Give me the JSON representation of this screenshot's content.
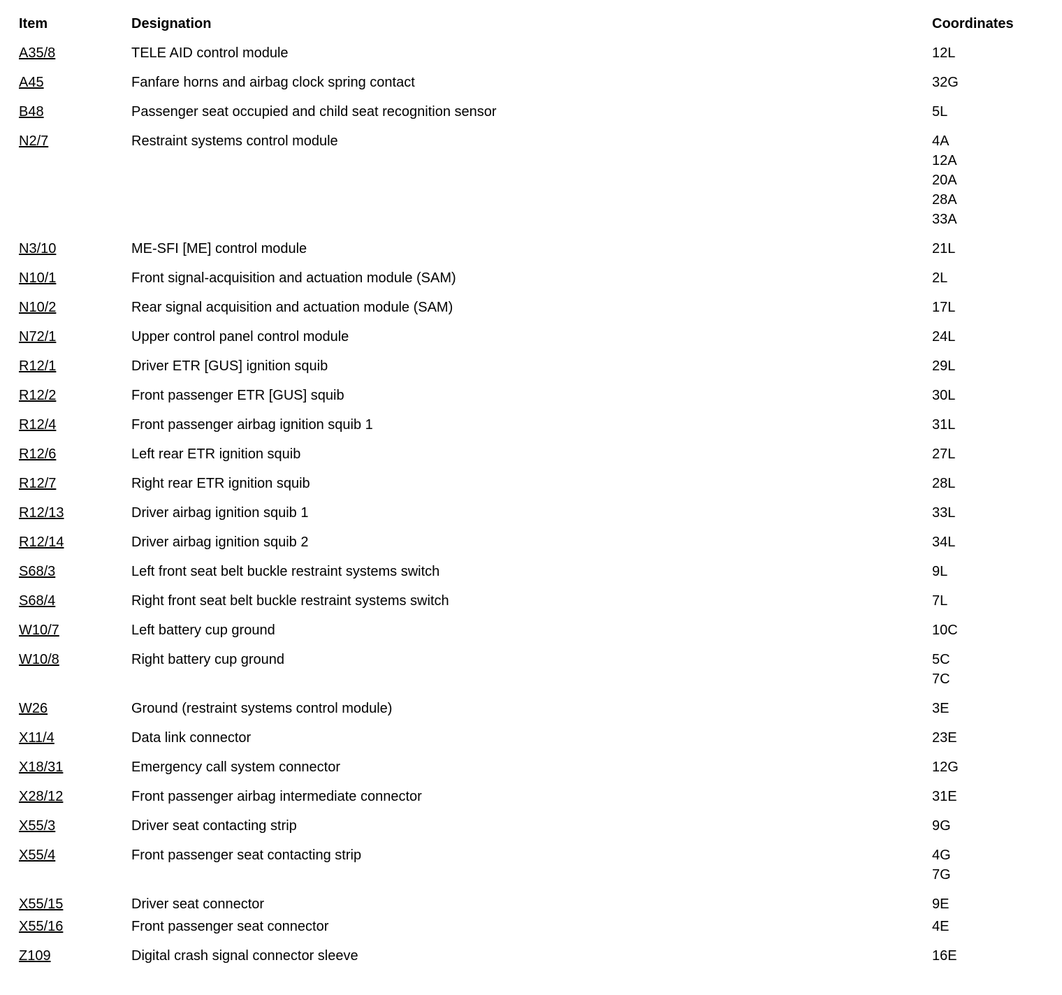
{
  "page": {
    "headers": {
      "item": "Item",
      "designation": "Designation",
      "coordinates": "Coordinates"
    },
    "rows": [
      {
        "item": "A35/8",
        "designation": "TELE AID control module",
        "coordinates": [
          "12L"
        ]
      },
      {
        "item": "A45",
        "designation": "Fanfare horns and airbag clock spring contact",
        "coordinates": [
          "32G"
        ]
      },
      {
        "item": "B48",
        "designation": "Passenger seat occupied and child seat recognition sensor",
        "coordinates": [
          "5L"
        ]
      },
      {
        "item": "N2/7",
        "designation": "Restraint systems control module",
        "coordinates": [
          "4A",
          "12A",
          "20A",
          "28A",
          "33A"
        ]
      },
      {
        "item": "N3/10",
        "designation": "ME-SFI [ME] control module",
        "coordinates": [
          "21L"
        ]
      },
      {
        "item": "N10/1",
        "designation": "Front signal-acquisition and actuation module (SAM)",
        "coordinates": [
          "2L"
        ]
      },
      {
        "item": "N10/2",
        "designation": "Rear signal acquisition and actuation module (SAM)",
        "coordinates": [
          "17L"
        ]
      },
      {
        "item": "N72/1",
        "designation": "Upper control panel control module",
        "coordinates": [
          "24L"
        ]
      },
      {
        "item": "R12/1",
        "designation": "Driver ETR [GUS] ignition squib",
        "coordinates": [
          "29L"
        ]
      },
      {
        "item": "R12/2",
        "designation": "Front passenger ETR [GUS] squib",
        "coordinates": [
          "30L"
        ]
      },
      {
        "item": "R12/4",
        "designation": "Front passenger airbag ignition squib 1",
        "coordinates": [
          "31L"
        ]
      },
      {
        "item": "R12/6",
        "designation": "Left rear ETR ignition squib",
        "coordinates": [
          "27L"
        ]
      },
      {
        "item": "R12/7",
        "designation": "Right rear ETR ignition squib",
        "coordinates": [
          "28L"
        ]
      },
      {
        "item": "R12/13",
        "designation": "Driver airbag ignition squib 1",
        "coordinates": [
          "33L"
        ]
      },
      {
        "item": "R12/14",
        "designation": "Driver airbag ignition squib 2",
        "coordinates": [
          "34L"
        ]
      },
      {
        "item": "S68/3",
        "designation": "Left front seat belt buckle restraint systems switch",
        "coordinates": [
          "9L"
        ]
      },
      {
        "item": "S68/4",
        "designation": "Right front seat belt buckle restraint systems switch",
        "coordinates": [
          "7L"
        ]
      },
      {
        "item": "W10/7",
        "designation": "Left battery cup ground",
        "coordinates": [
          "10C"
        ]
      },
      {
        "item": "W10/8",
        "designation": "Right battery cup ground",
        "coordinates": [
          "5C",
          "7C"
        ]
      },
      {
        "item": "W26",
        "designation": "Ground (restraint systems control module)",
        "coordinates": [
          "3E"
        ]
      },
      {
        "item": "X11/4",
        "designation": "Data link connector",
        "coordinates": [
          "23E"
        ]
      },
      {
        "item": "X18/31",
        "designation": "Emergency call system connector",
        "coordinates": [
          "12G"
        ]
      },
      {
        "item": "X28/12",
        "designation": "Front passenger airbag intermediate connector",
        "coordinates": [
          "31E"
        ]
      },
      {
        "item": "X55/3",
        "designation": "Driver seat contacting strip",
        "coordinates": [
          "9G"
        ]
      },
      {
        "item": "X55/4",
        "designation": "Front passenger seat contacting strip",
        "coordinates": [
          "4G",
          "7G"
        ]
      },
      {
        "item": "X55/15",
        "designation": "Driver seat connector",
        "coordinates": [
          "9E"
        ],
        "tight_bottom": true
      },
      {
        "item": "X55/16",
        "designation": "Front passenger seat connector",
        "coordinates": [
          "4E"
        ]
      },
      {
        "item": "Z109",
        "designation": "Digital crash signal connector sleeve",
        "coordinates": [
          "16E"
        ]
      }
    ]
  }
}
